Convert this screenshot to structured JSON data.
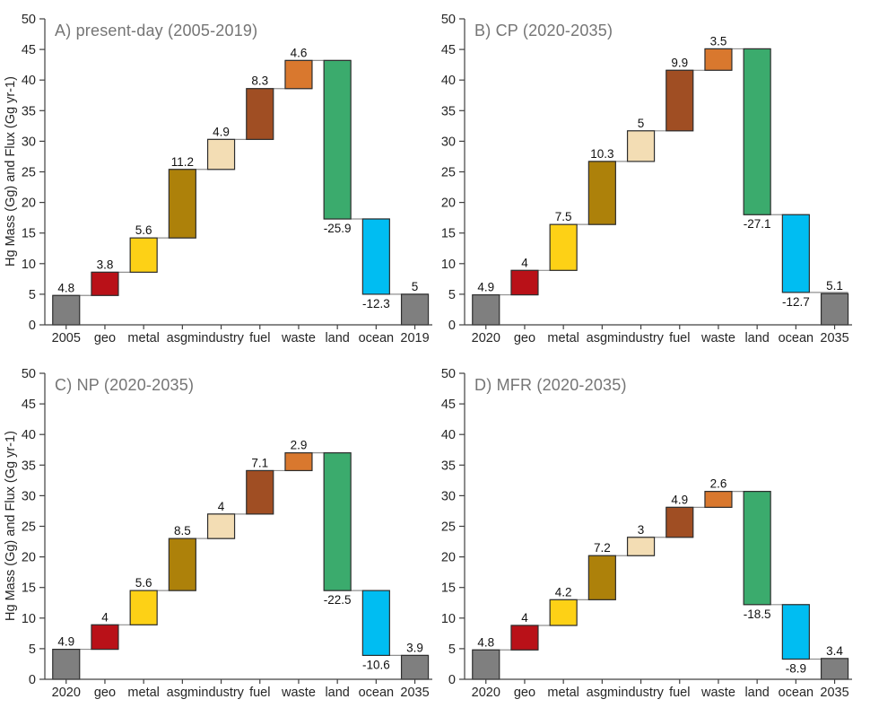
{
  "figure": {
    "ylabel": "Hg Mass (Gg) and Flux (Gg yr-1)"
  },
  "style": {
    "axis_color": "#404040",
    "bar_stroke_color": "#2e2e2e",
    "connector_color": "#909090",
    "tick_label_color": "#262626",
    "value_label_color": "#111111",
    "title_color": "#757575",
    "bar_colors": [
      "#7f7f7f",
      "#b91118",
      "#fdd116",
      "#ad810a",
      "#f3ddb4",
      "#a04e23",
      "#d9782e",
      "#3bab6d",
      "#00bdf2",
      "#7f7f7f"
    ]
  },
  "chart_data": [
    {
      "type": "bar",
      "subtype": "waterfall",
      "title": "A) present-day (2005-2019)",
      "ylabel": "Hg Mass (Gg) and Flux (Gg yr-1)",
      "ylim": [
        0,
        50
      ],
      "ytick_step": 5,
      "grid": false,
      "categories": [
        "2005",
        "geo",
        "metal",
        "asgm",
        "industry",
        "fuel",
        "waste",
        "land",
        "ocean",
        "2019"
      ],
      "bar_types": [
        "total",
        "delta",
        "delta",
        "delta",
        "delta",
        "delta",
        "delta",
        "delta",
        "delta",
        "total"
      ],
      "values": [
        4.8,
        3.8,
        5.6,
        11.2,
        4.9,
        8.3,
        4.6,
        -25.9,
        -12.3,
        5
      ],
      "labels": [
        "4.8",
        "3.8",
        "5.6",
        "11.2",
        "4.9",
        "8.3",
        "4.6",
        "-25.9",
        "-12.3",
        "5"
      ]
    },
    {
      "type": "bar",
      "subtype": "waterfall",
      "title": "B) CP (2020-2035)",
      "ylabel": "",
      "ylim": [
        0,
        50
      ],
      "ytick_step": 5,
      "grid": false,
      "categories": [
        "2020",
        "geo",
        "metal",
        "asgm",
        "industry",
        "fuel",
        "waste",
        "land",
        "ocean",
        "2035"
      ],
      "bar_types": [
        "total",
        "delta",
        "delta",
        "delta",
        "delta",
        "delta",
        "delta",
        "delta",
        "delta",
        "total"
      ],
      "values": [
        4.9,
        4,
        7.5,
        10.3,
        5,
        9.9,
        3.5,
        -27.1,
        -12.7,
        5.1
      ],
      "labels": [
        "4.9",
        "4",
        "7.5",
        "10.3",
        "5",
        "9.9",
        "3.5",
        "-27.1",
        "-12.7",
        "5.1"
      ]
    },
    {
      "type": "bar",
      "subtype": "waterfall",
      "title": "C) NP (2020-2035)",
      "ylabel": "Hg Mass (Gg) and Flux (Gg yr-1)",
      "ylim": [
        0,
        50
      ],
      "ytick_step": 5,
      "grid": false,
      "categories": [
        "2020",
        "geo",
        "metal",
        "asgm",
        "industry",
        "fuel",
        "waste",
        "land",
        "ocean",
        "2035"
      ],
      "bar_types": [
        "total",
        "delta",
        "delta",
        "delta",
        "delta",
        "delta",
        "delta",
        "delta",
        "delta",
        "total"
      ],
      "values": [
        4.9,
        4,
        5.6,
        8.5,
        4,
        7.1,
        2.9,
        -22.5,
        -10.6,
        3.9
      ],
      "labels": [
        "4.9",
        "4",
        "5.6",
        "8.5",
        "4",
        "7.1",
        "2.9",
        "-22.5",
        "-10.6",
        "3.9"
      ]
    },
    {
      "type": "bar",
      "subtype": "waterfall",
      "title": "D) MFR (2020-2035)",
      "ylabel": "",
      "ylim": [
        0,
        50
      ],
      "ytick_step": 5,
      "grid": false,
      "categories": [
        "2020",
        "geo",
        "metal",
        "asgm",
        "industry",
        "fuel",
        "waste",
        "land",
        "ocean",
        "2035"
      ],
      "bar_types": [
        "total",
        "delta",
        "delta",
        "delta",
        "delta",
        "delta",
        "delta",
        "delta",
        "delta",
        "total"
      ],
      "values": [
        4.8,
        4,
        4.2,
        7.2,
        3,
        4.9,
        2.6,
        -18.5,
        -8.9,
        3.4
      ],
      "labels": [
        "4.8",
        "4",
        "4.2",
        "7.2",
        "3",
        "4.9",
        "2.6",
        "-18.5",
        "-8.9",
        "3.4"
      ]
    }
  ]
}
